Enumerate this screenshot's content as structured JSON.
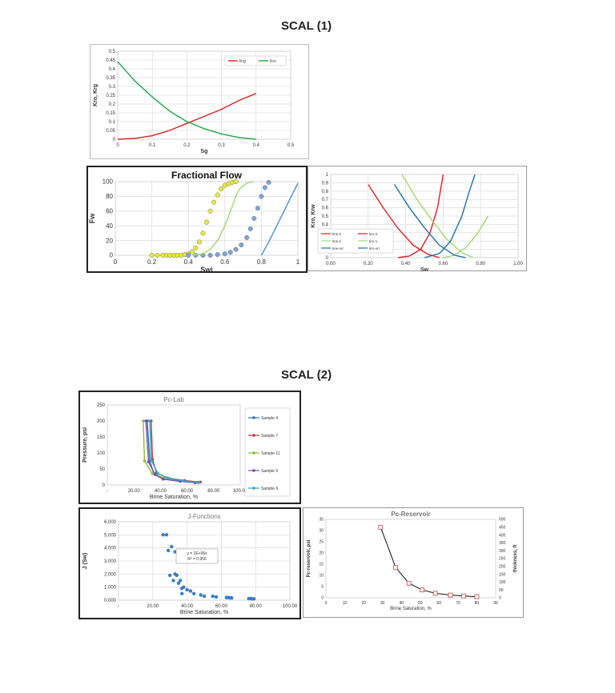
{
  "section1_title": "SCAL (1)",
  "section2_title": "SCAL (2)",
  "chart_data": [
    {
      "id": "relperm_gas",
      "type": "line",
      "title": "",
      "xlabel": "Sg",
      "ylabel": "Kro, Krg",
      "xlim": [
        0,
        0.5
      ],
      "ylim": [
        0,
        0.5
      ],
      "xticks": [
        "0",
        "0.1",
        "0.2",
        "0.3",
        "0.4",
        "0.5"
      ],
      "yticks": [
        "0",
        "0.05",
        "0.1",
        "0.15",
        "0.2",
        "0.25",
        "0.3",
        "0.35",
        "0.4",
        "0.45",
        "0.5"
      ],
      "grid": true,
      "legend": "top-right",
      "series": [
        {
          "name": "Krg",
          "color": "#e02020",
          "x": [
            0,
            0.05,
            0.1,
            0.15,
            0.2,
            0.25,
            0.3,
            0.35,
            0.4
          ],
          "y": [
            0,
            0.005,
            0.02,
            0.05,
            0.09,
            0.13,
            0.17,
            0.22,
            0.26
          ]
        },
        {
          "name": "Kro",
          "color": "#22a84a",
          "x": [
            0,
            0.05,
            0.1,
            0.15,
            0.2,
            0.25,
            0.3,
            0.35,
            0.4
          ],
          "y": [
            0.44,
            0.33,
            0.24,
            0.16,
            0.1,
            0.06,
            0.03,
            0.01,
            0
          ]
        }
      ]
    },
    {
      "id": "fractional_flow",
      "type": "scatter",
      "title": "Fractional Flow",
      "xlabel": "Swi",
      "ylabel": "Fw",
      "xlim": [
        0,
        1
      ],
      "ylim": [
        0,
        100
      ],
      "xticks": [
        "0",
        "0.2",
        "0.4",
        "0.6",
        "0.8",
        "1"
      ],
      "yticks": [
        "0",
        "20",
        "40",
        "60",
        "80",
        "100"
      ],
      "grid": true,
      "series": [
        {
          "color": "#e8e83a",
          "x": [
            0.2,
            0.23,
            0.26,
            0.28,
            0.3,
            0.32,
            0.34,
            0.36,
            0.38,
            0.4,
            0.42,
            0.44,
            0.46,
            0.48,
            0.5,
            0.52,
            0.54,
            0.56,
            0.58,
            0.6,
            0.62,
            0.64,
            0.66
          ],
          "y": [
            0,
            0,
            0,
            0,
            0,
            0,
            0,
            0,
            1,
            2,
            5,
            10,
            18,
            30,
            45,
            60,
            72,
            82,
            90,
            95,
            97,
            99,
            100
          ]
        },
        {
          "color": "#7ea4d8",
          "x": [
            0.4,
            0.44,
            0.48,
            0.52,
            0.56,
            0.6,
            0.63,
            0.66,
            0.69,
            0.72,
            0.74,
            0.76,
            0.78,
            0.8,
            0.82,
            0.84
          ],
          "y": [
            0,
            0,
            0,
            0,
            1,
            2,
            4,
            8,
            14,
            24,
            36,
            50,
            64,
            80,
            92,
            99
          ]
        },
        {
          "color": "#9fd870",
          "x": [
            0.42,
            0.48,
            0.52,
            0.56,
            0.6,
            0.64,
            0.66,
            0.68,
            0.72,
            0.76
          ],
          "y": [
            0,
            2,
            8,
            20,
            40,
            66,
            80,
            90,
            98,
            100
          ]
        },
        {
          "color": "#4a8fd8",
          "x": [
            0.8,
            0.84,
            0.88,
            0.92,
            0.96,
            1.0
          ],
          "y": [
            0,
            18,
            38,
            58,
            78,
            98
          ]
        }
      ]
    },
    {
      "id": "relperm_water",
      "type": "line",
      "title": "",
      "xlabel": "Sw",
      "ylabel": "Kro, Krw",
      "xlim": [
        0,
        1
      ],
      "ylim": [
        0,
        1
      ],
      "xticks": [
        "0.00",
        "0.20",
        "0.40",
        "0.60",
        "0.80",
        "1.00"
      ],
      "yticks": [
        "0",
        "0.1",
        "0.2",
        "0.3",
        "0.4",
        "0.5",
        "0.6",
        "0.7",
        "0.8",
        "0.9",
        "1"
      ],
      "grid": true,
      "legend": "bottom-left",
      "series": [
        {
          "name": "krw-2",
          "color": "#e02020",
          "x": [
            0.36,
            0.42,
            0.48,
            0.53,
            0.57,
            0.6
          ],
          "y": [
            0,
            0.02,
            0.1,
            0.3,
            0.6,
            1.0
          ]
        },
        {
          "name": "kro-2",
          "color": "#e02020",
          "x": [
            0.2,
            0.28,
            0.36,
            0.44,
            0.52,
            0.58
          ],
          "y": [
            0.88,
            0.6,
            0.35,
            0.15,
            0.04,
            0
          ]
        },
        {
          "name": "krw-1",
          "color": "#9fd870",
          "x": [
            0.6,
            0.66,
            0.72,
            0.78,
            0.84
          ],
          "y": [
            0,
            0.03,
            0.12,
            0.28,
            0.5
          ]
        },
        {
          "name": "kro-1",
          "color": "#9fd870",
          "x": [
            0.38,
            0.46,
            0.54,
            0.62,
            0.7,
            0.76
          ],
          "y": [
            1.0,
            0.7,
            0.45,
            0.22,
            0.06,
            0
          ]
        },
        {
          "name": "krw-orr",
          "color": "#1a6fb0",
          "x": [
            0.5,
            0.58,
            0.64,
            0.7,
            0.74,
            0.77
          ],
          "y": [
            0,
            0.05,
            0.2,
            0.5,
            0.8,
            1.0
          ]
        },
        {
          "name": "kro-orr",
          "color": "#1a6fb0",
          "x": [
            0.34,
            0.42,
            0.5,
            0.58,
            0.66,
            0.72
          ],
          "y": [
            0.88,
            0.6,
            0.36,
            0.15,
            0.03,
            0
          ]
        }
      ]
    },
    {
      "id": "pc_lab",
      "type": "line",
      "title": "Pc-Lab",
      "xlabel": "Brine Saturation, %",
      "ylabel": "Pressure, psi",
      "xlim": [
        0,
        100
      ],
      "ylim": [
        0,
        250
      ],
      "xticks": [
        "-",
        "20.00",
        "40.00",
        "60.00",
        "80.00",
        "100.00"
      ],
      "yticks": [
        "0",
        "50",
        "100",
        "150",
        "200",
        "250"
      ],
      "grid": false,
      "legend": "right",
      "series": [
        {
          "name": "Sample 4",
          "color": "#2e6db6",
          "x": [
            30,
            32,
            35,
            43,
            55,
            68
          ],
          "y": [
            200,
            75,
            35,
            20,
            12,
            8
          ]
        },
        {
          "name": "Sample 7",
          "color": "#c0392b",
          "x": [
            33,
            34,
            37,
            45,
            58,
            70
          ],
          "y": [
            200,
            80,
            38,
            22,
            14,
            9
          ]
        },
        {
          "name": "Sample 11",
          "color": "#8dbb3a",
          "x": [
            27,
            28,
            34,
            44,
            55,
            67
          ],
          "y": [
            200,
            75,
            35,
            20,
            12,
            8
          ]
        },
        {
          "name": "Sample 5",
          "color": "#7a4fb0",
          "x": [
            29,
            31,
            36,
            42,
            55,
            66
          ],
          "y": [
            200,
            72,
            32,
            18,
            11,
            7
          ]
        },
        {
          "name": "Sample 9",
          "color": "#2fa8c8",
          "x": [
            32,
            33,
            38,
            46,
            57,
            69
          ],
          "y": [
            200,
            78,
            36,
            21,
            13,
            8
          ]
        }
      ]
    },
    {
      "id": "j_functions",
      "type": "scatter",
      "title": "J-Functions",
      "xlabel": "Brine Saturation, %",
      "ylabel": "J (Sw)",
      "xlim": [
        0,
        100
      ],
      "ylim": [
        0,
        6
      ],
      "xticks": [
        "-",
        "20.00",
        "40.00",
        "60.00",
        "80.00",
        "100.00"
      ],
      "yticks": [
        "0.000",
        "1.000",
        "2.000",
        "3.000",
        "4.000",
        "5.000",
        "6.000"
      ],
      "grid": true,
      "annotation": [
        "y = 1E+06x",
        "R² = 0.956"
      ],
      "series": [
        {
          "color": "#3a7cc8",
          "x": [
            26,
            28,
            29,
            30,
            31,
            32,
            33,
            33,
            34,
            35,
            36,
            37,
            37,
            38,
            40,
            42,
            44,
            48,
            50,
            55,
            57,
            63,
            64,
            65,
            66,
            76,
            77,
            78,
            79
          ],
          "y": [
            5.0,
            5.0,
            3.8,
            1.9,
            4.1,
            1.5,
            2.0,
            3.7,
            1.9,
            1.3,
            1.5,
            0.9,
            0.5,
            1.0,
            0.8,
            0.7,
            0.5,
            0.4,
            0.3,
            0.3,
            0.25,
            0.2,
            0.2,
            0.18,
            0.17,
            0.12,
            0.12,
            0.1,
            0.1
          ]
        }
      ]
    },
    {
      "id": "pc_reservoir",
      "type": "line",
      "title": "Pc-Reservoir",
      "xlabel": "Brine Saturation, %",
      "ylabel": "Pc-reservoir, psi",
      "y2label": "thickness, ft",
      "xlim": [
        0,
        90
      ],
      "ylim": [
        0,
        35
      ],
      "y2lim": [
        0,
        500
      ],
      "xticks": [
        "0",
        "10",
        "20",
        "30",
        "40",
        "50",
        "60",
        "70",
        "80",
        "90"
      ],
      "yticks": [
        "0",
        "5",
        "10",
        "15",
        "20",
        "25",
        "30",
        "35"
      ],
      "y2ticks": [
        "0",
        "50",
        "100",
        "150",
        "200",
        "250",
        "300",
        "350",
        "400",
        "450",
        "500"
      ],
      "grid": false,
      "series": [
        {
          "color": "#111111",
          "marker_color": "#d04040",
          "x": [
            29,
            37,
            44,
            51,
            58,
            66,
            73,
            80
          ],
          "y": [
            31.5,
            13.5,
            6.5,
            3.5,
            2,
            1.2,
            0.8,
            0.5
          ]
        }
      ]
    }
  ]
}
